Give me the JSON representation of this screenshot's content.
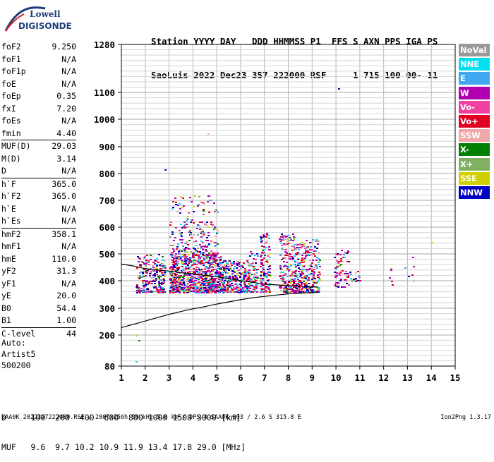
{
  "logo": {
    "line1": "Lowell",
    "line2": "DIGISONDE"
  },
  "header": {
    "line1": "Station YYYY DAY   DDD HHMMSS P1  FFS S AXN PPS IGA PS",
    "line2": "SaoLuis 2022 Dec23 357 222000 RSF     1 715 100 00- 11"
  },
  "params": {
    "group1": [
      {
        "label": "foF2",
        "value": "9.250"
      },
      {
        "label": "foF1",
        "value": "N/A"
      },
      {
        "label": "foF1p",
        "value": "N/A"
      },
      {
        "label": "foE",
        "value": "N/A"
      },
      {
        "label": "foEp",
        "value": "0.35"
      },
      {
        "label": "fxI",
        "value": "7.20"
      },
      {
        "label": "foEs",
        "value": "N/A"
      },
      {
        "label": "fmin",
        "value": "4.40"
      }
    ],
    "group2": [
      {
        "label": "MUF(D)",
        "value": "29.03"
      },
      {
        "label": "M(D)",
        "value": "3.14"
      },
      {
        "label": "D",
        "value": "N/A"
      }
    ],
    "group3": [
      {
        "label": "h`F",
        "value": "365.0"
      },
      {
        "label": "h`F2",
        "value": "365.0"
      },
      {
        "label": "h`E",
        "value": "N/A"
      },
      {
        "label": "h`Es",
        "value": "N/A"
      }
    ],
    "group4": [
      {
        "label": "hmF2",
        "value": "358.1"
      },
      {
        "label": "hmF1",
        "value": "N/A"
      },
      {
        "label": "hmE",
        "value": "110.0"
      },
      {
        "label": "yF2",
        "value": "31.3"
      },
      {
        "label": "yF1",
        "value": "N/A"
      },
      {
        "label": "yE",
        "value": "20.0"
      },
      {
        "label": "B0",
        "value": "54.4"
      },
      {
        "label": "B1",
        "value": "1.00"
      }
    ],
    "group5": [
      {
        "label": "C-level",
        "value": "44"
      }
    ]
  },
  "auto": {
    "line1": "Auto:",
    "line2": "Artist5",
    "line3": "500200"
  },
  "dmuf": {
    "d_line": "D     100  200  400  600  800 1000 1500 3000 [km]",
    "muf_line": "MUF   9.6  9.7 10.2 10.9 11.9 13.4 17.8 29.0 [MHz]"
  },
  "footer": {
    "left": "SAA0K_2022357222000.RSF / 280fx256h 50 kHz 5.0 km / DPS-4 SAA0K 903 / 2.6 S 315.8 E",
    "right": "Ion2Png 1.3.17"
  },
  "legend": [
    {
      "label": "NoVal",
      "color": "#999999"
    },
    {
      "label": "NNE",
      "color": "#00e0f0"
    },
    {
      "label": "E",
      "color": "#40a8f0"
    },
    {
      "label": "W",
      "color": "#b000b0"
    },
    {
      "label": "Vo-",
      "color": "#f040a0"
    },
    {
      "label": "Vo+",
      "color": "#e00020"
    },
    {
      "label": "SSW",
      "color": "#f0a8a8"
    },
    {
      "label": "X-",
      "color": "#008000"
    },
    {
      "label": "X+",
      "color": "#80b060"
    },
    {
      "label": "SSE",
      "color": "#d0d000"
    },
    {
      "label": "NNW",
      "color": "#0000c0"
    }
  ],
  "chart_data": {
    "type": "scatter",
    "title": "",
    "xlabel": "",
    "ylabel": "",
    "xlim": [
      1,
      15
    ],
    "ylim": [
      80,
      1280
    ],
    "x_ticks": [
      "1",
      "2",
      "3",
      "4",
      "5",
      "6",
      "7",
      "8",
      "9",
      "10",
      "11",
      "12",
      "13",
      "14",
      "15"
    ],
    "y_ticks": [
      "80",
      "200",
      "300",
      "400",
      "500",
      "600",
      "700",
      "800",
      "900",
      "1000",
      "1100",
      "1280"
    ],
    "grid": true,
    "y_scale": "nonlinear",
    "y_tick_values": [
      80,
      200,
      300,
      400,
      500,
      600,
      700,
      800,
      900,
      1000,
      1100,
      1280
    ],
    "profile_curve": {
      "name": "",
      "x": [
        1.0,
        1.5,
        2.0,
        2.5,
        3.0,
        3.5,
        4.0,
        4.5,
        5.0,
        5.5,
        6.0,
        6.5,
        7.0,
        7.5,
        8.0,
        8.5,
        9.0,
        9.25
      ],
      "y": [
        228,
        240,
        252,
        265,
        277,
        288,
        298,
        306,
        315,
        323,
        331,
        338,
        343,
        348,
        352,
        355,
        357,
        358
      ]
    },
    "trace_curve": {
      "name": "",
      "x": [
        1.0,
        1.5,
        2.0,
        2.5,
        3.0,
        3.5,
        4.0,
        4.5,
        5.0,
        5.5,
        6.0,
        6.5,
        7.0,
        7.5,
        8.0,
        8.5,
        9.0,
        9.25
      ],
      "y": [
        462,
        455,
        445,
        440,
        436,
        430,
        425,
        420,
        415,
        408,
        400,
        394,
        388,
        385,
        382,
        380,
        378,
        377
      ]
    },
    "echo_clusters": [
      {
        "x_range": [
          1.6,
          2.8
        ],
        "y_range": [
          360,
          500
        ],
        "density": 260
      },
      {
        "x_range": [
          3.0,
          5.2
        ],
        "y_range": [
          360,
          500
        ],
        "density": 900
      },
      {
        "x_range": [
          3.0,
          5.0
        ],
        "y_range": [
          500,
          720
        ],
        "density": 220
      },
      {
        "x_range": [
          5.2,
          6.3
        ],
        "y_range": [
          360,
          480
        ],
        "density": 260
      },
      {
        "x_range": [
          6.3,
          6.7
        ],
        "y_range": [
          360,
          520
        ],
        "density": 80
      },
      {
        "x_range": [
          6.8,
          7.2
        ],
        "y_range": [
          360,
          580
        ],
        "density": 140
      },
      {
        "x_range": [
          7.6,
          8.3
        ],
        "y_range": [
          360,
          580
        ],
        "density": 220
      },
      {
        "x_range": [
          8.3,
          9.3
        ],
        "y_range": [
          360,
          560
        ],
        "density": 260
      },
      {
        "x_range": [
          9.9,
          10.5
        ],
        "y_range": [
          380,
          520
        ],
        "density": 70
      },
      {
        "x_range": [
          10.5,
          11.0
        ],
        "y_range": [
          400,
          440
        ],
        "density": 18
      },
      {
        "x_range": [
          12.0,
          13.5
        ],
        "y_range": [
          380,
          460
        ],
        "density": 10
      }
    ],
    "isolated_points": [
      {
        "x": 10.1,
        "y": 1115,
        "source": "NNW"
      },
      {
        "x": 4.6,
        "y": 950,
        "source": "SSW"
      },
      {
        "x": 2.8,
        "y": 815,
        "source": "NNW"
      },
      {
        "x": 13.2,
        "y": 490,
        "source": "W"
      },
      {
        "x": 14.0,
        "y": 545,
        "source": "SSE"
      },
      {
        "x": 1.6,
        "y": 200,
        "source": "SSE"
      },
      {
        "x": 1.7,
        "y": 180,
        "source": "X-"
      },
      {
        "x": 1.6,
        "y": 100,
        "source": "NNE"
      }
    ]
  }
}
